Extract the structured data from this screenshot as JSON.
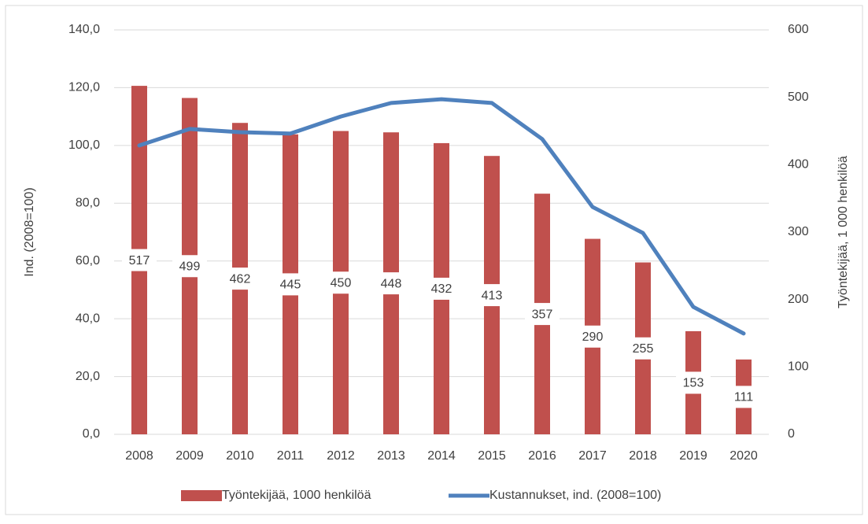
{
  "chart_data": {
    "type": "bar_line",
    "categories": [
      "2008",
      "2009",
      "2010",
      "2011",
      "2012",
      "2013",
      "2014",
      "2015",
      "2016",
      "2017",
      "2018",
      "2019",
      "2020"
    ],
    "series": [
      {
        "name": "Työntekijää, 1000 henkilöä",
        "type": "bar",
        "axis": "y2",
        "color": "#c0504d",
        "values": [
          517,
          499,
          462,
          445,
          450,
          448,
          432,
          413,
          357,
          290,
          255,
          153,
          111
        ]
      },
      {
        "name": "Kustannukset, ind. (2008=100)",
        "type": "line",
        "axis": "y",
        "color": "#4f81bd",
        "values": [
          100.0,
          105.7,
          104.6,
          104.1,
          110.0,
          114.7,
          116.0,
          114.7,
          102.2,
          78.7,
          69.7,
          44.1,
          34.9
        ]
      }
    ],
    "ylabel": "Ind. (2008=100)",
    "y2label": "Työntekijää, 1 000 henkilöä",
    "ylim": [
      0,
      140
    ],
    "yticks": [
      {
        "value": 0,
        "label": "0,0"
      },
      {
        "value": 20,
        "label": "20,0"
      },
      {
        "value": 40,
        "label": "40,0"
      },
      {
        "value": 60,
        "label": "60,0"
      },
      {
        "value": 80,
        "label": "80,0"
      },
      {
        "value": 100,
        "label": "100,0"
      },
      {
        "value": 120,
        "label": "120,0"
      },
      {
        "value": 140,
        "label": "140,0"
      }
    ],
    "y2lim": [
      0,
      600
    ],
    "y2ticks": [
      0,
      100,
      200,
      300,
      400,
      500,
      600
    ],
    "grid": true,
    "legend": "bottom"
  }
}
